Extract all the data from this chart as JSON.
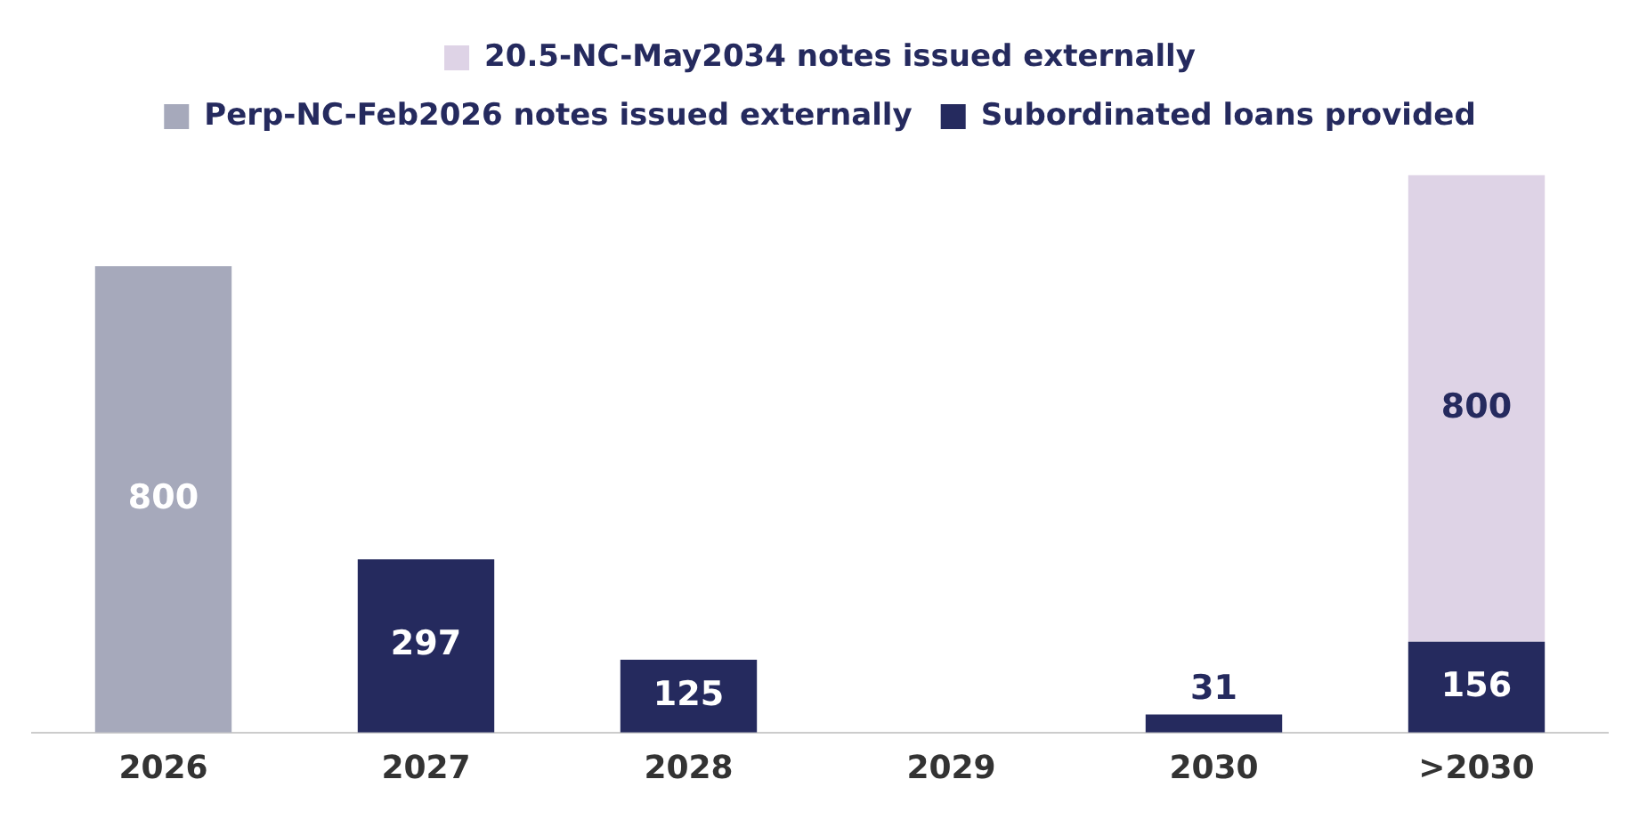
{
  "chart_data": {
    "type": "bar",
    "stacked": true,
    "categories": [
      "2026",
      "2027",
      "2028",
      "2029",
      "2030",
      ">2030"
    ],
    "series": [
      {
        "name": "Subordinated loans provided",
        "color": "#252a5e",
        "values": [
          null,
          297,
          125,
          null,
          31,
          156
        ]
      },
      {
        "name": "Perp-NC-Feb2026 notes issued externally",
        "color": "#a6a9bb",
        "values": [
          800,
          null,
          null,
          null,
          null,
          null
        ]
      },
      {
        "name": "20.5-NC-May2034 notes issued externally",
        "color": "#ded3e6",
        "values": [
          null,
          null,
          null,
          null,
          null,
          800
        ]
      }
    ],
    "data_labels": true,
    "grid": false,
    "legend": "top",
    "tick_labels": "x"
  }
}
